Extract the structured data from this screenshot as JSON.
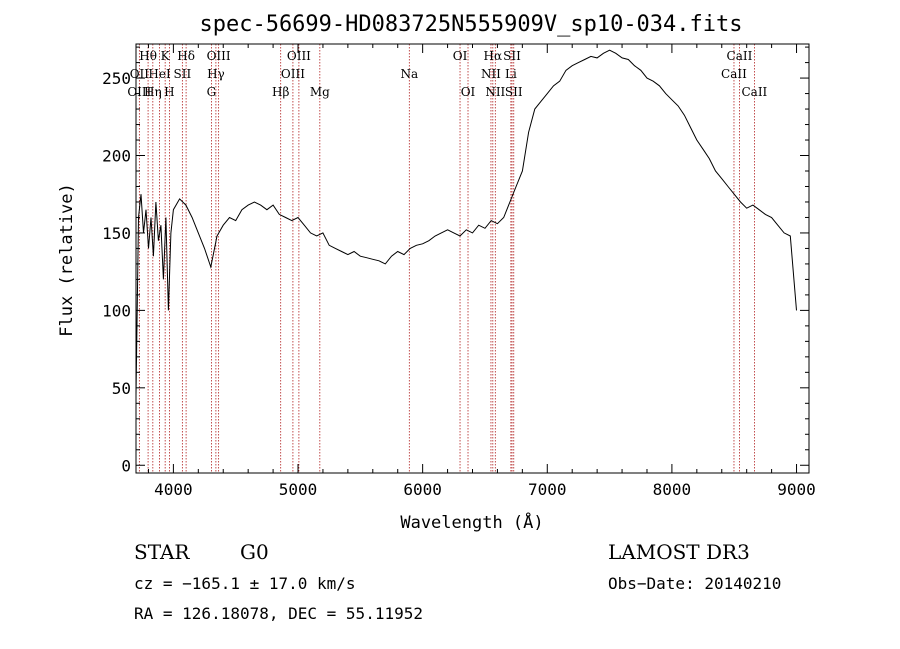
{
  "chart_data": {
    "type": "line",
    "title": "spec-56699-HD083725N555909V_sp10-034.fits",
    "xlabel": "Wavelength (Å)",
    "ylabel": "Flux (relative)",
    "xlim": [
      3700,
      9100
    ],
    "ylim": [
      -5,
      272
    ],
    "x_ticks": [
      4000,
      5000,
      6000,
      7000,
      8000,
      9000
    ],
    "y_ticks": [
      0,
      50,
      100,
      150,
      200,
      250
    ],
    "grid": false,
    "line_color": "#000000",
    "marker_color": "#b22222",
    "series": [
      {
        "name": "flux",
        "x": [
          3700,
          3720,
          3740,
          3760,
          3780,
          3800,
          3820,
          3840,
          3860,
          3880,
          3900,
          3920,
          3940,
          3960,
          3980,
          4000,
          4050,
          4100,
          4150,
          4200,
          4250,
          4300,
          4350,
          4400,
          4450,
          4500,
          4550,
          4600,
          4650,
          4700,
          4750,
          4800,
          4850,
          4900,
          4950,
          5000,
          5050,
          5100,
          5150,
          5200,
          5250,
          5300,
          5350,
          5400,
          5450,
          5500,
          5550,
          5600,
          5650,
          5700,
          5750,
          5800,
          5850,
          5900,
          5950,
          6000,
          6050,
          6100,
          6150,
          6200,
          6250,
          6300,
          6350,
          6400,
          6450,
          6500,
          6550,
          6600,
          6650,
          6700,
          6750,
          6800,
          6850,
          6900,
          6950,
          7000,
          7050,
          7100,
          7150,
          7200,
          7250,
          7300,
          7350,
          7400,
          7450,
          7500,
          7550,
          7600,
          7650,
          7700,
          7750,
          7800,
          7850,
          7900,
          7950,
          8000,
          8050,
          8100,
          8150,
          8200,
          8250,
          8300,
          8350,
          8400,
          8450,
          8500,
          8550,
          8600,
          8650,
          8700,
          8750,
          8800,
          8850,
          8900,
          8950,
          9000
        ],
        "y": [
          45,
          160,
          175,
          150,
          165,
          140,
          160,
          135,
          170,
          145,
          155,
          120,
          160,
          100,
          150,
          165,
          172,
          168,
          160,
          150,
          140,
          128,
          148,
          155,
          160,
          158,
          165,
          168,
          170,
          168,
          165,
          168,
          162,
          160,
          158,
          160,
          155,
          150,
          148,
          150,
          142,
          140,
          138,
          136,
          138,
          135,
          134,
          133,
          132,
          130,
          135,
          138,
          136,
          140,
          142,
          143,
          145,
          148,
          150,
          152,
          150,
          148,
          152,
          150,
          155,
          153,
          158,
          156,
          160,
          170,
          180,
          190,
          215,
          230,
          235,
          240,
          245,
          248,
          255,
          258,
          260,
          262,
          264,
          263,
          266,
          268,
          266,
          263,
          262,
          258,
          255,
          250,
          248,
          245,
          240,
          236,
          232,
          226,
          218,
          210,
          204,
          198,
          190,
          185,
          180,
          175,
          170,
          166,
          168,
          165,
          162,
          160,
          155,
          150,
          148,
          100
        ]
      }
    ],
    "spectral_lines": [
      {
        "label": "Hθ",
        "wavelength": 3797,
        "row": 0
      },
      {
        "label": "K",
        "wavelength": 3934,
        "row": 0
      },
      {
        "label": "Hδ",
        "wavelength": 4102,
        "row": 0
      },
      {
        "label": "OIII",
        "wavelength": 4363,
        "row": 0
      },
      {
        "label": "OIII",
        "wavelength": 5007,
        "row": 0
      },
      {
        "label": "OI",
        "wavelength": 6300,
        "row": 0
      },
      {
        "label": "Hα",
        "wavelength": 6563,
        "row": 0
      },
      {
        "label": "SII",
        "wavelength": 6717,
        "row": 0
      },
      {
        "label": "CaII",
        "wavelength": 8542,
        "row": 0
      },
      {
        "label": "OII",
        "wavelength": 3727,
        "row": 1
      },
      {
        "label": "HeI",
        "wavelength": 3889,
        "row": 1
      },
      {
        "label": "SII",
        "wavelength": 4072,
        "row": 1
      },
      {
        "label": "Hγ",
        "wavelength": 4341,
        "row": 1
      },
      {
        "label": "OIII",
        "wavelength": 4959,
        "row": 1
      },
      {
        "label": "Na",
        "wavelength": 5893,
        "row": 1
      },
      {
        "label": "NII",
        "wavelength": 6548,
        "row": 1
      },
      {
        "label": "Li",
        "wavelength": 6708,
        "row": 1
      },
      {
        "label": "CaII",
        "wavelength": 8498,
        "row": 1
      },
      {
        "label": "OIII",
        "wavelength": 3727,
        "row": 2
      },
      {
        "label": "Hη",
        "wavelength": 3835,
        "row": 2
      },
      {
        "label": "H",
        "wavelength": 3968,
        "row": 2
      },
      {
        "label": "G",
        "wavelength": 4305,
        "row": 2
      },
      {
        "label": "Hβ",
        "wavelength": 4861,
        "row": 2
      },
      {
        "label": "Mg",
        "wavelength": 5175,
        "row": 2
      },
      {
        "label": "OI",
        "wavelength": 6364,
        "row": 2
      },
      {
        "label": "NII",
        "wavelength": 6583,
        "row": 2
      },
      {
        "label": "SII",
        "wavelength": 6731,
        "row": 2
      },
      {
        "label": "CaII",
        "wavelength": 8662,
        "row": 2
      }
    ]
  },
  "info": {
    "object_class": "STAR",
    "subclass": "G0",
    "survey": "LAMOST DR3",
    "cz": "cz = −165.1 ± 17.0 km/s",
    "obs_date": "Obs−Date: 20140210",
    "radec": "RA = 126.18078, DEC =  55.11952"
  }
}
